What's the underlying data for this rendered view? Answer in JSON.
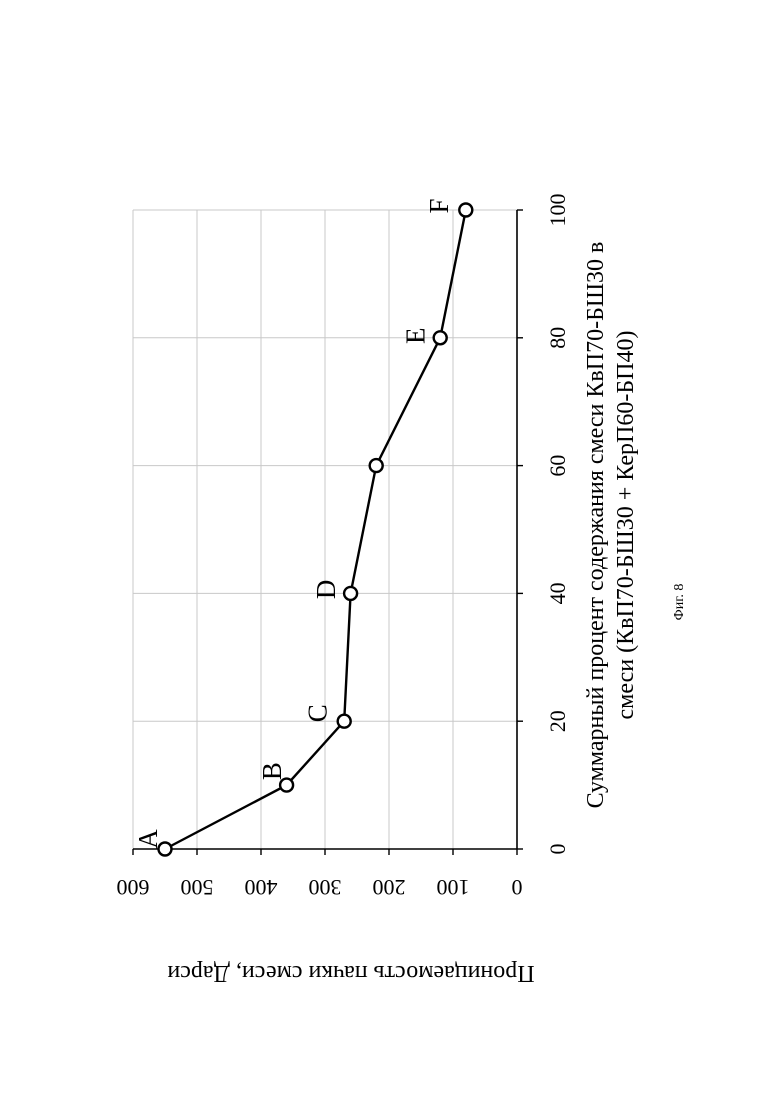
{
  "figure": {
    "caption": "Фиг. 8"
  },
  "chart_data": {
    "type": "line",
    "orientation": "rotated 90° counter-clockwise on page",
    "xlabel_lines": [
      "Суммарный процент содержания смеси КвП70-БШ30 в",
      "смеси (КвП70-БШ30 + КерП60-БП40)"
    ],
    "ylabel": "Проницаемость пачки смеси, Дарси",
    "xlim": [
      0,
      100
    ],
    "ylim": [
      0,
      600
    ],
    "x_ticks": [
      0,
      20,
      40,
      60,
      80,
      100
    ],
    "y_ticks": [
      0,
      100,
      200,
      300,
      400,
      500,
      600
    ],
    "grid": true,
    "series": [
      {
        "x": [
          0,
          10,
          20,
          40,
          60,
          80,
          100
        ],
        "y": [
          550,
          360,
          270,
          260,
          220,
          120,
          80
        ],
        "point_labels": [
          "A",
          "B",
          "C",
          "D",
          "",
          "E",
          "F"
        ],
        "marker": "open-circle",
        "color": "#000000"
      }
    ]
  }
}
